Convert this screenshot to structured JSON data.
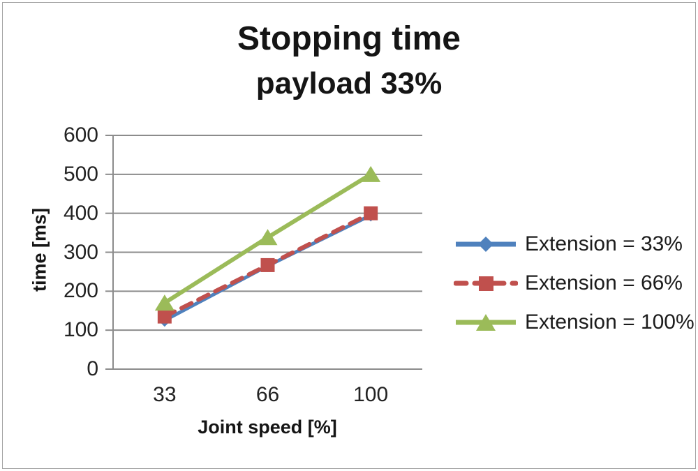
{
  "chart_data": {
    "type": "line",
    "title": "Stopping time",
    "subtitle": "payload 33%",
    "xlabel": "Joint speed [%]",
    "ylabel": "time [ms]",
    "x_categories": [
      "33",
      "66",
      "100"
    ],
    "ylim": [
      0,
      600
    ],
    "yticks": [
      0,
      100,
      200,
      300,
      400,
      500,
      600
    ],
    "grid": true,
    "legend_position": "right",
    "axis_color": "#8c8c8c",
    "tick_text_color": "#232323",
    "title_text_color": "#151515",
    "series": [
      {
        "name": "Extension = 33%",
        "color": "#4f81bd",
        "marker": "diamond",
        "line_style": "solid",
        "values": [
          125,
          265,
          395
        ]
      },
      {
        "name": "Extension = 66%",
        "color": "#c0504d",
        "marker": "square",
        "line_style": "dashed",
        "values": [
          135,
          267,
          400
        ]
      },
      {
        "name": "Extension = 100%",
        "color": "#9bbb59",
        "marker": "triangle",
        "line_style": "solid",
        "values": [
          170,
          338,
          500
        ]
      }
    ]
  }
}
